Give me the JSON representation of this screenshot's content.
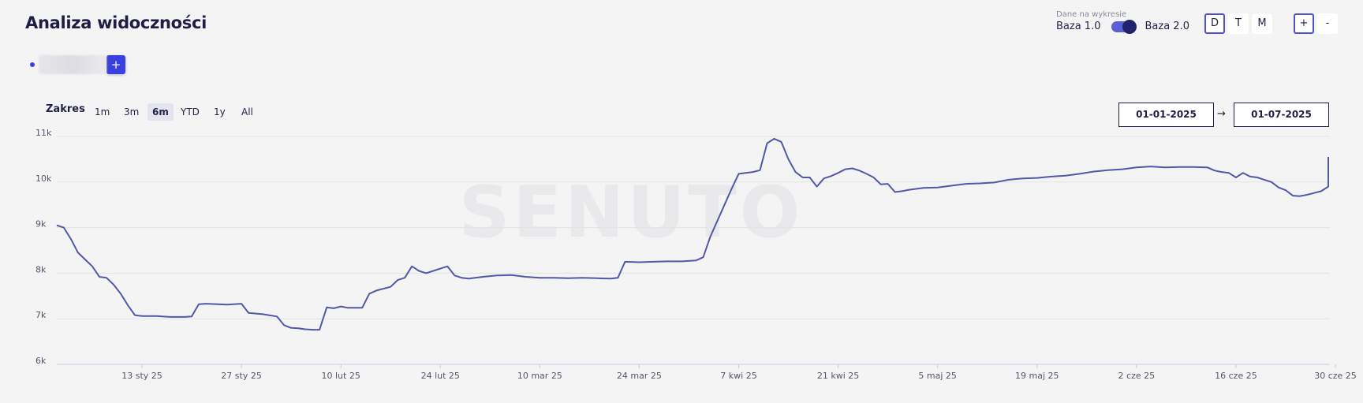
{
  "header": {
    "title": "Analiza widoczności",
    "add_label": "+"
  },
  "base_switch": {
    "caption": "Dane na wykresie",
    "left_label": "Baza 1.0",
    "right_label": "Baza 2.0",
    "selected": "Baza 2.0"
  },
  "granularity": {
    "buttons": [
      "D",
      "T",
      "M"
    ],
    "active": "D"
  },
  "zoom": {
    "plus": "+",
    "minus": "-"
  },
  "range": {
    "label": "Zakres",
    "buttons": [
      "1m",
      "3m",
      "6m",
      "YTD",
      "1y",
      "All"
    ],
    "active": "6m",
    "date_from": "01-01-2025",
    "arrow": "→",
    "date_to": "01-07-2025"
  },
  "watermark": "SENUTO",
  "colors": {
    "accent": "#3b41e3",
    "line": "#5258a8",
    "dark": "#1d1d45"
  },
  "chart_data": {
    "type": "line",
    "y_ticks": [
      "6k",
      "7k",
      "8k",
      "9k",
      "10k",
      "11k"
    ],
    "ylim": [
      6000,
      11000
    ],
    "x_ticks": [
      {
        "label": "13 sty 25",
        "day": 12
      },
      {
        "label": "27 sty 25",
        "day": 26
      },
      {
        "label": "10 lut 25",
        "day": 40
      },
      {
        "label": "24 lut 25",
        "day": 54
      },
      {
        "label": "10 mar 25",
        "day": 68
      },
      {
        "label": "24 mar 25",
        "day": 82
      },
      {
        "label": "7 kwi 25",
        "day": 96
      },
      {
        "label": "21 kwi 25",
        "day": 110
      },
      {
        "label": "5 maj 25",
        "day": 124
      },
      {
        "label": "19 maj 25",
        "day": 138
      },
      {
        "label": "2 cze 25",
        "day": 152
      },
      {
        "label": "16 cze 25",
        "day": 166
      },
      {
        "label": "30 cze 25",
        "day": 180
      }
    ],
    "xlim": [
      0,
      180
    ],
    "series": [
      {
        "points": [
          [
            0,
            9050
          ],
          [
            1,
            9000
          ],
          [
            2,
            8750
          ],
          [
            3,
            8450
          ],
          [
            4,
            8300
          ],
          [
            5,
            8150
          ],
          [
            6,
            7920
          ],
          [
            7,
            7900
          ],
          [
            8,
            7750
          ],
          [
            9,
            7550
          ],
          [
            10,
            7300
          ],
          [
            11,
            7080
          ],
          [
            12,
            7060
          ],
          [
            14,
            7060
          ],
          [
            16,
            7040
          ],
          [
            18,
            7040
          ],
          [
            19,
            7050
          ],
          [
            20,
            7320
          ],
          [
            21,
            7330
          ],
          [
            24,
            7310
          ],
          [
            26,
            7330
          ],
          [
            27,
            7130
          ],
          [
            29,
            7100
          ],
          [
            31,
            7050
          ],
          [
            32,
            6860
          ],
          [
            33,
            6800
          ],
          [
            34,
            6790
          ],
          [
            35,
            6770
          ],
          [
            36,
            6760
          ],
          [
            37,
            6760
          ],
          [
            38,
            7250
          ],
          [
            39,
            7230
          ],
          [
            40,
            7270
          ],
          [
            41,
            7240
          ],
          [
            42,
            7240
          ],
          [
            43,
            7240
          ],
          [
            44,
            7550
          ],
          [
            45,
            7620
          ],
          [
            47,
            7700
          ],
          [
            48,
            7850
          ],
          [
            49,
            7900
          ],
          [
            50,
            8150
          ],
          [
            51,
            8050
          ],
          [
            52,
            8000
          ],
          [
            53,
            8050
          ],
          [
            54,
            8100
          ],
          [
            55,
            8150
          ],
          [
            56,
            7950
          ],
          [
            57,
            7900
          ],
          [
            58,
            7880
          ],
          [
            60,
            7920
          ],
          [
            62,
            7950
          ],
          [
            64,
            7960
          ],
          [
            66,
            7920
          ],
          [
            68,
            7900
          ],
          [
            70,
            7900
          ],
          [
            72,
            7890
          ],
          [
            74,
            7900
          ],
          [
            76,
            7890
          ],
          [
            78,
            7880
          ],
          [
            79,
            7900
          ],
          [
            80,
            8250
          ],
          [
            82,
            8240
          ],
          [
            84,
            8250
          ],
          [
            86,
            8260
          ],
          [
            88,
            8260
          ],
          [
            90,
            8280
          ],
          [
            91,
            8350
          ],
          [
            92,
            8800
          ],
          [
            94,
            9500
          ],
          [
            95,
            9850
          ],
          [
            96,
            10180
          ],
          [
            98,
            10220
          ],
          [
            99,
            10260
          ],
          [
            100,
            10850
          ],
          [
            101,
            10950
          ],
          [
            102,
            10880
          ],
          [
            103,
            10500
          ],
          [
            104,
            10220
          ],
          [
            105,
            10100
          ],
          [
            106,
            10100
          ],
          [
            107,
            9900
          ],
          [
            108,
            10080
          ],
          [
            109,
            10130
          ],
          [
            110,
            10200
          ],
          [
            111,
            10280
          ],
          [
            112,
            10300
          ],
          [
            113,
            10250
          ],
          [
            114,
            10180
          ],
          [
            115,
            10100
          ],
          [
            116,
            9950
          ],
          [
            117,
            9960
          ],
          [
            118,
            9780
          ],
          [
            119,
            9800
          ],
          [
            120,
            9830
          ],
          [
            122,
            9870
          ],
          [
            124,
            9880
          ],
          [
            126,
            9920
          ],
          [
            128,
            9960
          ],
          [
            130,
            9970
          ],
          [
            132,
            9990
          ],
          [
            134,
            10050
          ],
          [
            136,
            10080
          ],
          [
            138,
            10090
          ],
          [
            140,
            10120
          ],
          [
            142,
            10140
          ],
          [
            144,
            10180
          ],
          [
            146,
            10230
          ],
          [
            148,
            10260
          ],
          [
            150,
            10280
          ],
          [
            152,
            10320
          ],
          [
            154,
            10340
          ],
          [
            156,
            10320
          ],
          [
            158,
            10330
          ],
          [
            160,
            10330
          ],
          [
            162,
            10320
          ],
          [
            163,
            10250
          ],
          [
            164,
            10220
          ],
          [
            165,
            10200
          ],
          [
            166,
            10100
          ],
          [
            167,
            10200
          ],
          [
            168,
            10120
          ],
          [
            169,
            10100
          ],
          [
            170,
            10050
          ],
          [
            171,
            10000
          ],
          [
            172,
            9880
          ],
          [
            173,
            9820
          ],
          [
            174,
            9700
          ],
          [
            175,
            9690
          ],
          [
            176,
            9720
          ],
          [
            177,
            9760
          ],
          [
            178,
            9800
          ],
          [
            179,
            9900
          ],
          [
            180,
            10050
          ],
          [
            181,
            10550
          ]
        ]
      }
    ]
  }
}
